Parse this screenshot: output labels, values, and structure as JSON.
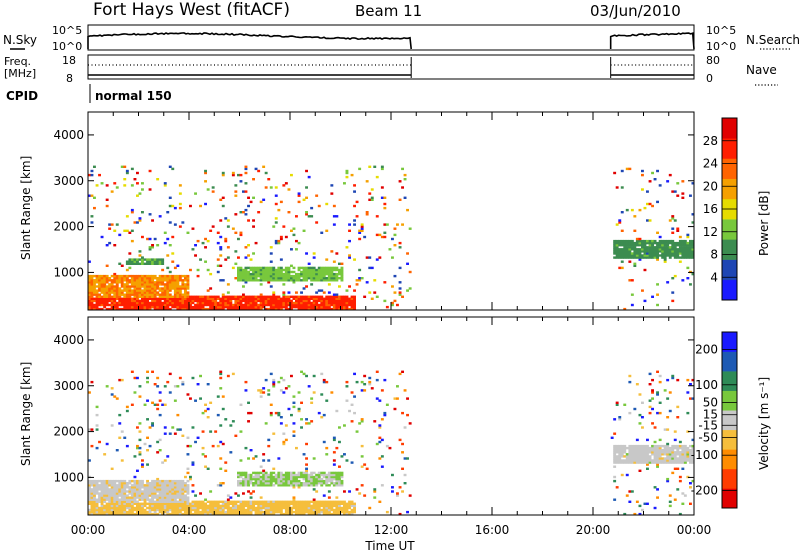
{
  "header": {
    "title": "Fort Hays West (fitACF)",
    "beam": "Beam 11",
    "date": "03/Jun/2010"
  },
  "top_panel": {
    "left_label": "N.Sky",
    "right_label": "N.Search",
    "left_ticks": [
      "10^5",
      "10^0"
    ],
    "right_ticks": [
      "10^5",
      "10^0"
    ]
  },
  "freq_panel": {
    "left_label_line1": "Freq.",
    "left_label_line2": "[MHz]",
    "right_label": "Nave",
    "left_ticks": [
      "18",
      "8"
    ],
    "right_ticks": [
      "80",
      "0"
    ]
  },
  "cpid": {
    "label": "CPID",
    "mode": "normal 150"
  },
  "x_axis": {
    "label": "Time UT",
    "ticks": [
      "00:00",
      "04:00",
      "08:00",
      "12:00",
      "16:00",
      "20:00",
      "00:00"
    ]
  },
  "colors": {
    "power_scale": [
      "#1a1aff",
      "#1e46b4",
      "#3c8c50",
      "#78c83c",
      "#e6dc00",
      "#f5a000",
      "#ff6400",
      "#ff1e00",
      "#e00000"
    ],
    "velocity_scale": [
      "#e00000",
      "#ff3c00",
      "#ff8c00",
      "#f5be3c",
      "#c8c8c8",
      "#78c83c",
      "#2e8b57",
      "#1e5ab4",
      "#1a1aff"
    ]
  },
  "chart_data": [
    {
      "type": "heatmap",
      "panel": "power",
      "ylabel": "Slant Range [km]",
      "yticks": [
        "1000",
        "2000",
        "3000",
        "4000"
      ],
      "ylim": [
        180,
        4500
      ],
      "x_range_hours": [
        0,
        24
      ],
      "data_intervals_hours": [
        [
          0.0,
          12.8
        ],
        [
          20.7,
          24.0
        ]
      ],
      "colorbar": {
        "label": "Power [dB]",
        "ticks": [
          "4",
          "8",
          "12",
          "16",
          "20",
          "24",
          "28"
        ],
        "range": [
          0,
          32
        ]
      },
      "features": [
        {
          "t": [
            0.0,
            10.5
          ],
          "range_km": [
            180,
            450
          ],
          "value": 26
        },
        {
          "t": [
            0.0,
            4.0
          ],
          "range_km": [
            450,
            900
          ],
          "value": 21
        },
        {
          "t": [
            5.8,
            10.0
          ],
          "range_km": [
            800,
            1100
          ],
          "value": 12
        },
        {
          "t": [
            1.5,
            3.0
          ],
          "range_km": [
            1150,
            1300
          ],
          "value": 10
        },
        {
          "t": [
            20.8,
            24.0
          ],
          "range_km": [
            1300,
            1700
          ],
          "value": 9
        }
      ]
    },
    {
      "type": "heatmap",
      "panel": "velocity",
      "ylabel": "Slant Range [km]",
      "yticks": [
        "1000",
        "2000",
        "3000",
        "4000"
      ],
      "ylim": [
        180,
        4500
      ],
      "x_range_hours": [
        0,
        24
      ],
      "data_intervals_hours": [
        [
          0.0,
          12.8
        ],
        [
          20.7,
          24.0
        ]
      ],
      "colorbar": {
        "label": "Velocity [m s⁻¹]",
        "ticks": [
          "-200",
          "-100",
          "-50",
          "-15",
          "15",
          "50",
          "100",
          "200"
        ],
        "range": [
          -250,
          250
        ]
      },
      "features": [
        {
          "t": [
            0.0,
            10.5
          ],
          "range_km": [
            180,
            450
          ],
          "value": -50
        },
        {
          "t": [
            0.0,
            4.0
          ],
          "range_km": [
            450,
            900
          ],
          "value": -10
        },
        {
          "t": [
            5.8,
            10.0
          ],
          "range_km": [
            800,
            1100
          ],
          "value": 30
        },
        {
          "t": [
            20.8,
            24.0
          ],
          "range_km": [
            1300,
            1700
          ],
          "value": 0
        }
      ]
    }
  ]
}
